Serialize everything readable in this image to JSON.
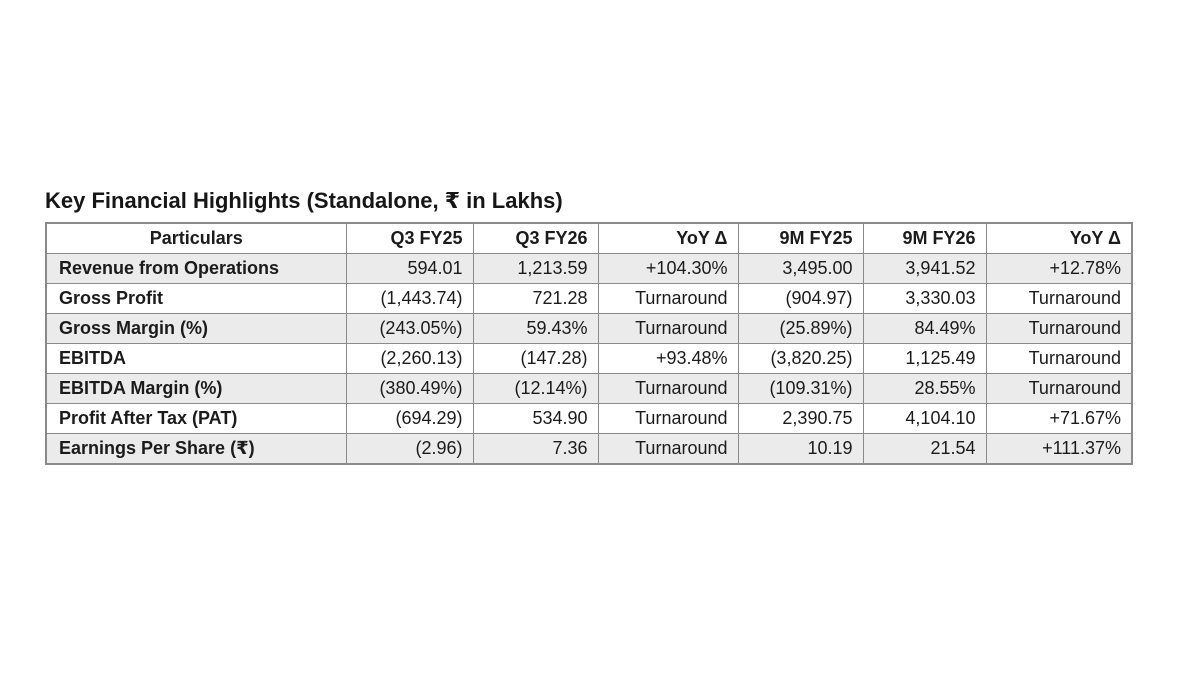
{
  "title": "Key Financial Highlights (Standalone, ₹ in Lakhs)",
  "table": {
    "columns": [
      "Particulars",
      "Q3 FY25",
      "Q3 FY26",
      "YoY Δ",
      "9M FY25",
      "9M FY26",
      "YoY Δ"
    ],
    "rows": [
      {
        "label": "Revenue from Operations",
        "values": [
          "594.01",
          "1,213.59",
          "+104.30%",
          "3,495.00",
          "3,941.52",
          "+12.78%"
        ]
      },
      {
        "label": "Gross Profit",
        "values": [
          "(1,443.74)",
          "721.28",
          "Turnaround",
          "(904.97)",
          "3,330.03",
          "Turnaround"
        ]
      },
      {
        "label": "Gross Margin (%)",
        "values": [
          "(243.05%)",
          "59.43%",
          "Turnaround",
          "(25.89%)",
          "84.49%",
          "Turnaround"
        ]
      },
      {
        "label": "EBITDA",
        "values": [
          "(2,260.13)",
          "(147.28)",
          "+93.48%",
          "(3,820.25)",
          "1,125.49",
          "Turnaround"
        ]
      },
      {
        "label": "EBITDA Margin (%)",
        "values": [
          "(380.49%)",
          "(12.14%)",
          "Turnaround",
          "(109.31%)",
          "28.55%",
          "Turnaround"
        ]
      },
      {
        "label": "Profit After Tax (PAT)",
        "values": [
          "(694.29)",
          "534.90",
          "Turnaround",
          "2,390.75",
          "4,104.10",
          "+71.67%"
        ]
      },
      {
        "label": "Earnings Per Share (₹)",
        "values": [
          "(2.96)",
          "7.36",
          "Turnaround",
          "10.19",
          "21.54",
          "+111.37%"
        ]
      }
    ],
    "colors": {
      "alt_row_bg": "#ebebeb",
      "row_bg": "#ffffff",
      "border": "#8a8a8a",
      "text": "#1b1b1b"
    }
  }
}
